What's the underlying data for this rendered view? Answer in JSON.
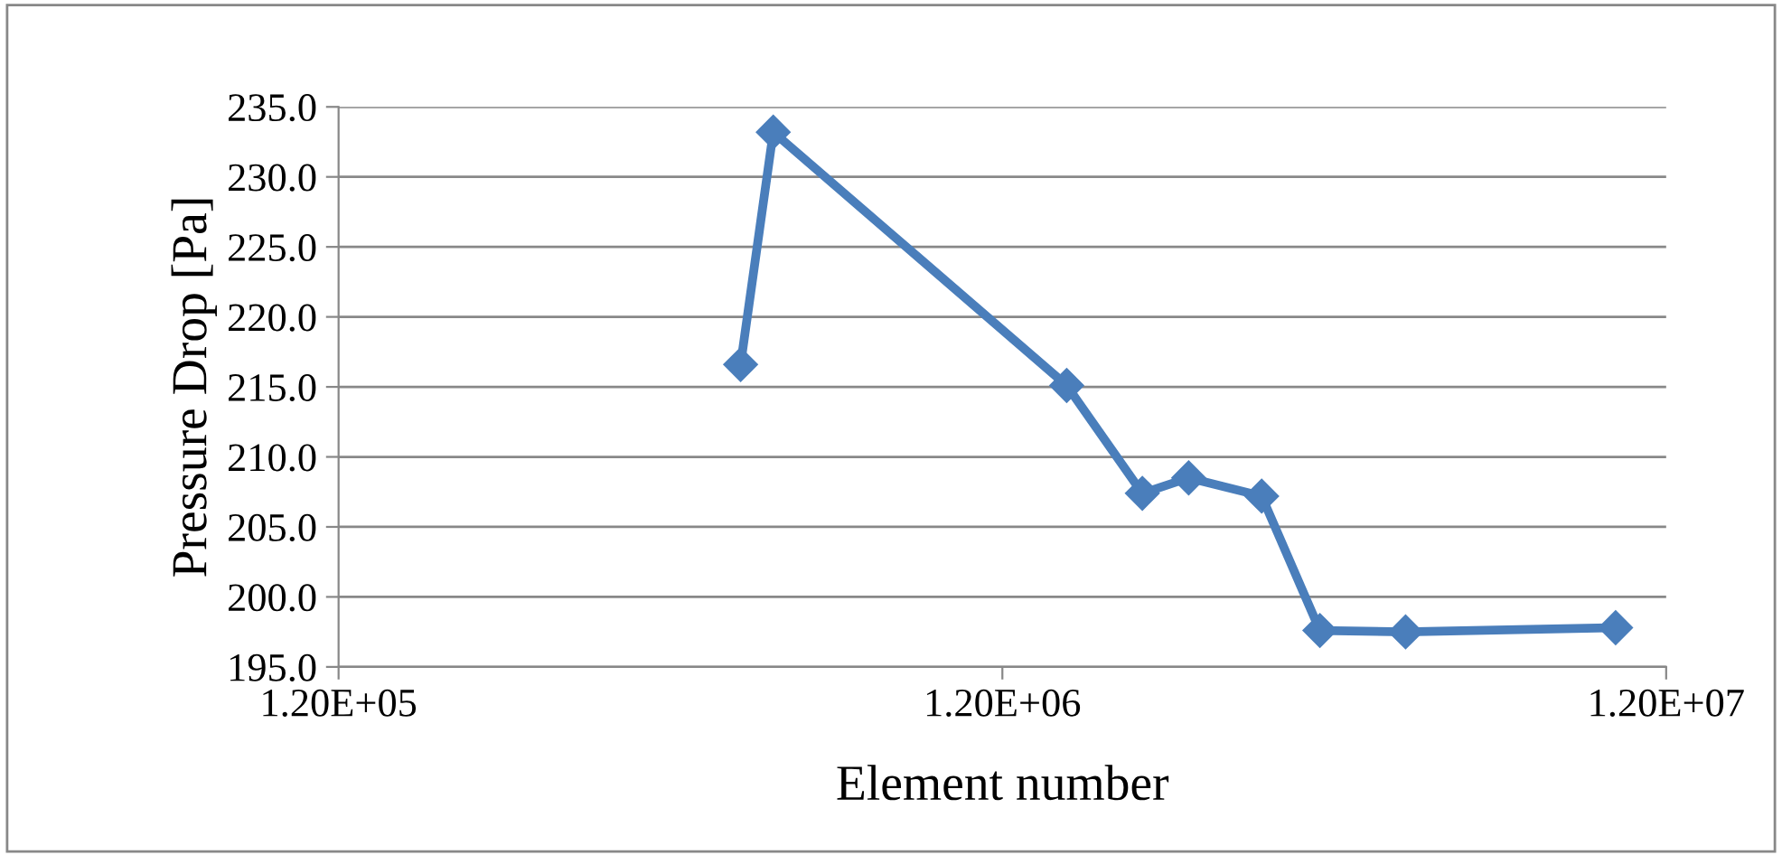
{
  "chart_data": {
    "type": "line",
    "xlabel": "Element number",
    "ylabel": "Pressure Drop [Pa]",
    "log": "x",
    "grid": "y",
    "marker": "diamond",
    "line_style": "solid",
    "xlim": [
      120000,
      12000000
    ],
    "xticks": [
      {
        "value": 120000,
        "label": "1.20E+05"
      },
      {
        "value": 1200000,
        "label": "1.20E+06"
      },
      {
        "value": 12000000,
        "label": "1.20E+07"
      }
    ],
    "ylim": [
      195,
      235
    ],
    "yticks": [
      {
        "value": 195,
        "label": "195.0"
      },
      {
        "value": 200,
        "label": "200.0"
      },
      {
        "value": 205,
        "label": "205.0"
      },
      {
        "value": 210,
        "label": "210.0"
      },
      {
        "value": 215,
        "label": "215.0"
      },
      {
        "value": 220,
        "label": "220.0"
      },
      {
        "value": 225,
        "label": "225.0"
      },
      {
        "value": 230,
        "label": "230.0"
      },
      {
        "value": 235,
        "label": "235.0"
      }
    ],
    "x": [
      484000,
      542000,
      1500000,
      1950000,
      2290000,
      2950000,
      3610000,
      4860000,
      10070000
    ],
    "series": [
      {
        "color": "#4a7ebb",
        "values": [
          216.6,
          233.2,
          215.1,
          207.4,
          208.5,
          207.2,
          197.6,
          197.5,
          197.8
        ]
      }
    ]
  }
}
